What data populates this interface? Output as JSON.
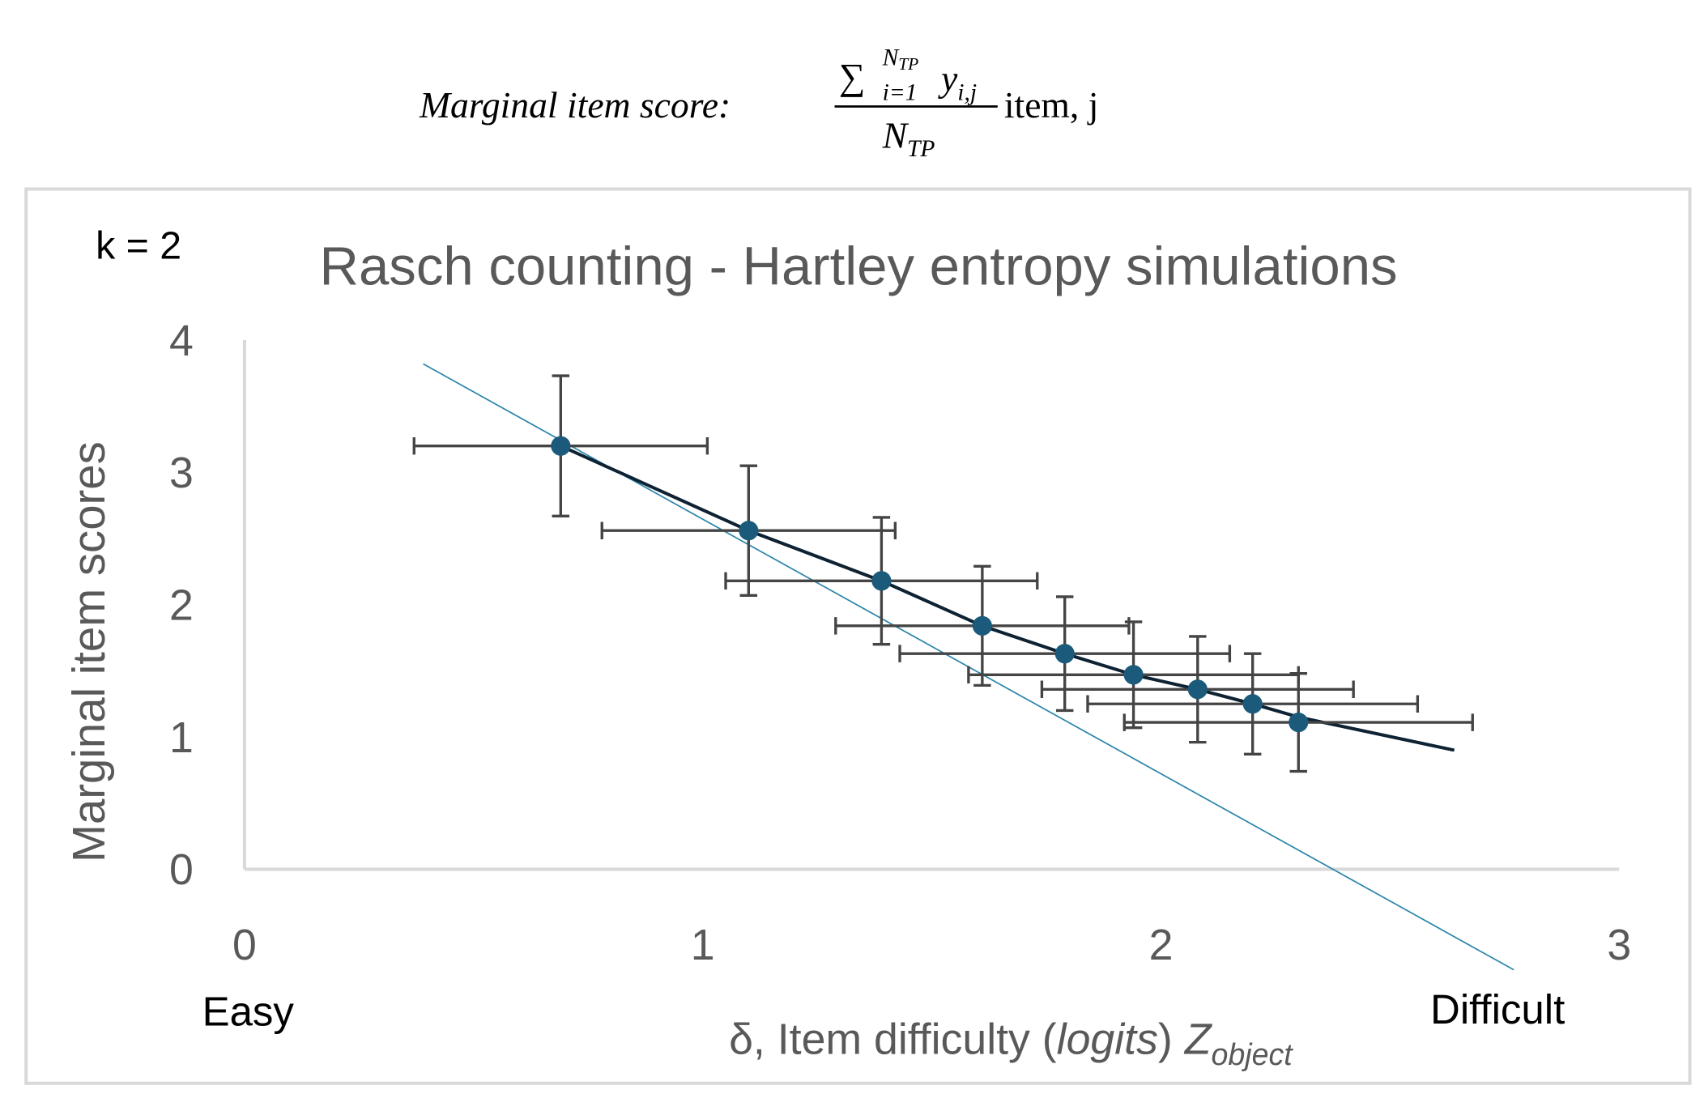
{
  "formula": {
    "lhs": "Marginal item score:",
    "sum": "∑",
    "lower_limit": "i=1",
    "upper_limit": "N",
    "upper_limit_sub": "TP",
    "summand": "y",
    "summand_sub": "i,j",
    "denominator": "N",
    "denominator_sub": "TP",
    "suffix": "item, j"
  },
  "chart_data": {
    "type": "scatter",
    "title": "Rasch counting - Hartley entropy simulations",
    "annotations": {
      "k": "k = 2",
      "easy": "Easy",
      "difficult": "Difficult"
    },
    "x_label": {
      "text": "δ, Item difficulty (",
      "italic": "logits",
      "after": ") ",
      "var": "Z",
      "var_sub": "object"
    },
    "y_label": "Marginal item scores",
    "xlim": [
      0,
      3
    ],
    "xticks": [
      0,
      1,
      2,
      3
    ],
    "ylim": [
      0,
      4
    ],
    "yticks": [
      0,
      1,
      2,
      3,
      4
    ],
    "grid": false,
    "series": [
      {
        "type": "scatter",
        "color": "#1b5a7a",
        "error_color": "#444444",
        "x": [
          0.69,
          1.1,
          1.39,
          1.61,
          1.79,
          1.94,
          2.08,
          2.2,
          2.3
        ],
        "values": [
          3.2,
          2.56,
          2.18,
          1.84,
          1.63,
          1.47,
          1.36,
          1.25,
          1.11
        ],
        "xerr": [
          0.32,
          0.32,
          0.34,
          0.32,
          0.36,
          0.36,
          0.34,
          0.36,
          0.38
        ],
        "yerr": [
          0.53,
          0.49,
          0.48,
          0.45,
          0.43,
          0.4,
          0.4,
          0.38,
          0.37
        ]
      },
      {
        "type": "line",
        "color": "#0d2233",
        "x": [
          0.69,
          1.1,
          1.39,
          1.61,
          1.79,
          1.94,
          2.08,
          2.2,
          2.3,
          2.64
        ],
        "values": [
          3.2,
          2.56,
          2.18,
          1.84,
          1.63,
          1.47,
          1.36,
          1.25,
          1.15,
          0.9
        ]
      },
      {
        "type": "line",
        "color": "#2e86ab",
        "x": [
          0.39,
          2.77
        ],
        "values": [
          3.82,
          -0.76
        ]
      }
    ]
  }
}
